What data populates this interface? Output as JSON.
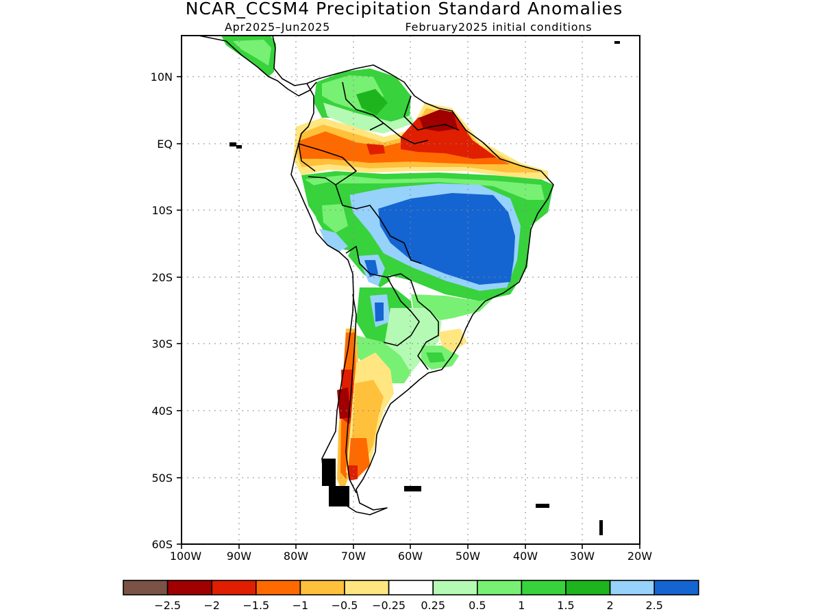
{
  "title": "NCAR_CCSM4 Precipitation Standard Anomalies",
  "subtitle_period": "Apr2025–Jun2025",
  "subtitle_init": "February2025 initial conditions",
  "axes": {
    "lat_labels": [
      "10N",
      "EQ",
      "10S",
      "20S",
      "30S",
      "40S",
      "50S",
      "60S"
    ],
    "lon_labels": [
      "100W",
      "90W",
      "80W",
      "70W",
      "60W",
      "50W",
      "40W",
      "30W",
      "20W"
    ],
    "lon_range": [
      -100,
      -20
    ],
    "lat_range": [
      -60,
      16
    ],
    "grid": "dotted"
  },
  "legend": {
    "colors": [
      "#7a5246",
      "#a00000",
      "#e01e00",
      "#ff6a00",
      "#ffc03c",
      "#ffe680",
      "#ffffff",
      "#b4fab4",
      "#78f073",
      "#37d23c",
      "#1eb41e",
      "#96d2fa",
      "#1464d2"
    ],
    "labels": [
      "−2.5",
      "−2",
      "−1.5",
      "−1",
      "−0.5",
      "−0.25",
      "0.25",
      "0.5",
      "1",
      "1.5",
      "2",
      "2.5"
    ]
  },
  "map_data": {
    "variable": "Precipitation standard anomaly",
    "region": "South America",
    "palette": {
      "gn": "#37d23c",
      "lg": "#78f073",
      "pg": "#b4fab4",
      "dg": "#1eb41e",
      "lb": "#96d2fa",
      "db": "#1464d2",
      "ye": "#ffe680",
      "lo": "#ffc03c",
      "or": "#ff6a00",
      "rd": "#e01e00",
      "dr": "#a00000"
    },
    "regions": [
      {
        "name": "Colombia-Venezuela",
        "level": "1.5",
        "fill": "gn"
      },
      {
        "name": "Central America",
        "level": "1.5",
        "fill": "gn"
      },
      {
        "name": "Guianas",
        "level": "-2",
        "fill": "rd"
      },
      {
        "name": "Northern Amazon",
        "level": "-1",
        "fill": "or"
      },
      {
        "name": "Central Brazil",
        "level": "2.5",
        "fill": "db"
      },
      {
        "name": "Bolivia",
        "level": "2.5",
        "fill": "db"
      },
      {
        "name": "Paraguay",
        "level": "2.5",
        "fill": "db"
      },
      {
        "name": "Southern Brazil coast",
        "level": "-0.5",
        "fill": "lo"
      },
      {
        "name": "Central Chile",
        "level": "-2.5",
        "fill": "dr"
      },
      {
        "name": "Patagonia",
        "level": "-0.5",
        "fill": "lo"
      }
    ]
  }
}
